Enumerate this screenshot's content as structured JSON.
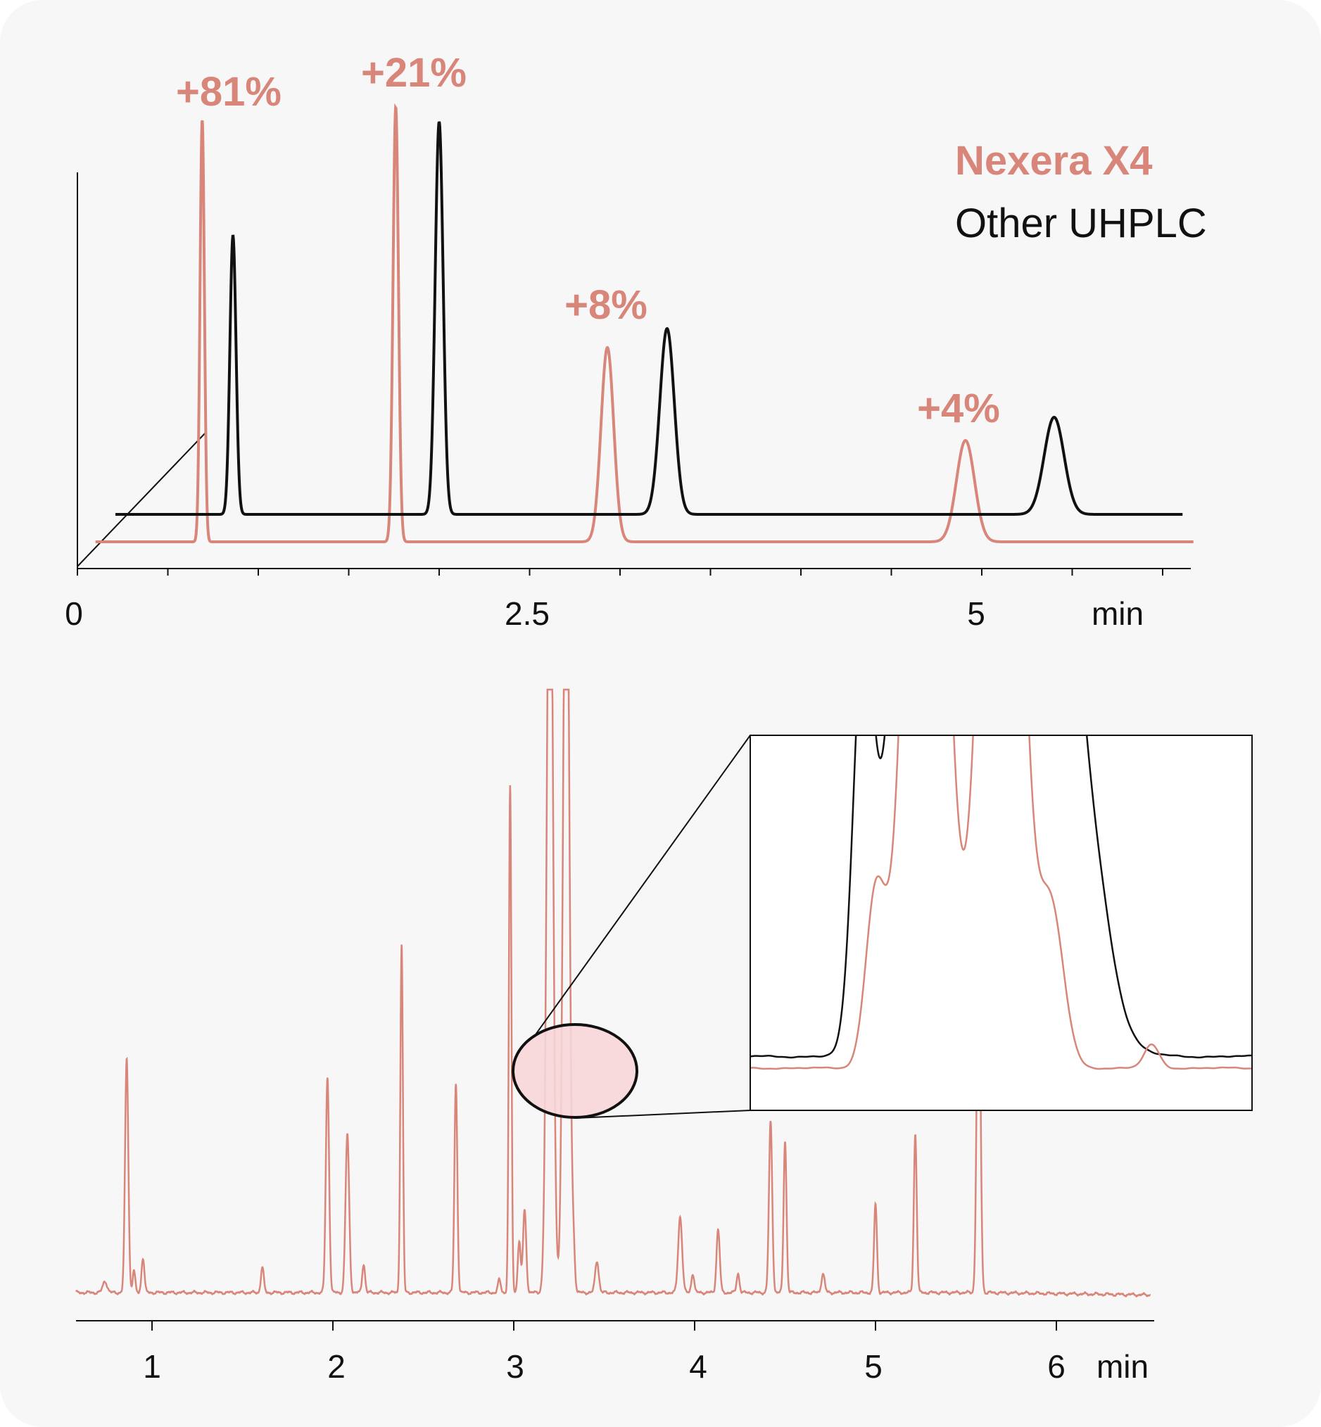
{
  "colors": {
    "nexera": "#d8857a",
    "other": "#111111",
    "card_bg": "#f7f7f7",
    "ellipse_fill": "#f7d6d8"
  },
  "chart_data": [
    {
      "type": "line",
      "legend": [
        "Nexera X4",
        "Other UHPLC"
      ],
      "legend_position": "top-right",
      "xlabel": "min",
      "x_ticks": [
        "0",
        "2.5",
        "5"
      ],
      "xlim": [
        0,
        6.2
      ],
      "grid": false,
      "series": [
        {
          "name": "Nexera X4",
          "baseline": 0,
          "peaks": [
            {
              "rt": 0.69,
              "height": 1.0,
              "width": 0.012,
              "annotation": "+81%"
            },
            {
              "rt": 1.76,
              "height": 1.03,
              "width": 0.015,
              "annotation": "+21%"
            },
            {
              "rt": 2.93,
              "height": 0.46,
              "width": 0.035,
              "annotation": "+8%"
            },
            {
              "rt": 4.91,
              "height": 0.24,
              "width": 0.05,
              "annotation": "+4%"
            }
          ]
        },
        {
          "name": "Other UHPLC",
          "baseline": 0.065,
          "peaks": [
            {
              "rt": 0.86,
              "height": 0.66,
              "width": 0.017
            },
            {
              "rt": 2.0,
              "height": 0.93,
              "width": 0.022
            },
            {
              "rt": 3.26,
              "height": 0.44,
              "width": 0.04
            },
            {
              "rt": 5.4,
              "height": 0.23,
              "width": 0.055
            }
          ]
        }
      ]
    },
    {
      "type": "line",
      "xlabel": "min",
      "x_ticks": [
        "1",
        "2",
        "3",
        "4",
        "5",
        "6"
      ],
      "xlim": [
        0.58,
        6.52
      ],
      "grid": false,
      "series": [
        {
          "name": "",
          "baseline": 0.01,
          "peaks": [
            {
              "rt": 0.74,
              "height": 0.018,
              "width": 0.012
            },
            {
              "rt": 0.86,
              "height": 0.37,
              "width": 0.009
            },
            {
              "rt": 0.9,
              "height": 0.035,
              "width": 0.007
            },
            {
              "rt": 0.95,
              "height": 0.055,
              "width": 0.008
            },
            {
              "rt": 1.61,
              "height": 0.04,
              "width": 0.008
            },
            {
              "rt": 1.97,
              "height": 0.34,
              "width": 0.009
            },
            {
              "rt": 2.08,
              "height": 0.25,
              "width": 0.01
            },
            {
              "rt": 2.17,
              "height": 0.045,
              "width": 0.008
            },
            {
              "rt": 2.38,
              "height": 0.55,
              "width": 0.007
            },
            {
              "rt": 2.68,
              "height": 0.33,
              "width": 0.008
            },
            {
              "rt": 2.92,
              "height": 0.02,
              "width": 0.008
            },
            {
              "rt": 2.98,
              "height": 0.8,
              "width": 0.007
            },
            {
              "rt": 3.03,
              "height": 0.08,
              "width": 0.008
            },
            {
              "rt": 3.06,
              "height": 0.13,
              "width": 0.009
            },
            {
              "rt": 3.2,
              "height": 1.4,
              "width": 0.016
            },
            {
              "rt": 3.29,
              "height": 1.4,
              "width": 0.016
            },
            {
              "rt": 3.33,
              "height": 0.06,
              "width": 0.008
            },
            {
              "rt": 3.46,
              "height": 0.05,
              "width": 0.01
            },
            {
              "rt": 3.92,
              "height": 0.12,
              "width": 0.011
            },
            {
              "rt": 3.99,
              "height": 0.03,
              "width": 0.008
            },
            {
              "rt": 4.13,
              "height": 0.1,
              "width": 0.009
            },
            {
              "rt": 4.24,
              "height": 0.03,
              "width": 0.008
            },
            {
              "rt": 4.42,
              "height": 0.27,
              "width": 0.009
            },
            {
              "rt": 4.5,
              "height": 0.24,
              "width": 0.008
            },
            {
              "rt": 4.71,
              "height": 0.03,
              "width": 0.009
            },
            {
              "rt": 5.0,
              "height": 0.14,
              "width": 0.008
            },
            {
              "rt": 5.22,
              "height": 0.25,
              "width": 0.008
            },
            {
              "rt": 5.57,
              "height": 0.6,
              "width": 0.01
            }
          ]
        }
      ],
      "zoom_highlight": {
        "x_range": [
          3.15,
          3.38
        ]
      }
    },
    {
      "type": "line",
      "role": "zoom-inset",
      "legend_position": "none",
      "grid": false,
      "xlim": [
        3.1,
        3.5
      ],
      "series": [
        {
          "name": "Nexera X4",
          "baseline": 0.02,
          "peaks": [
            {
              "rt": 3.2,
              "height": 0.22,
              "width": 0.008
            },
            {
              "rt": 3.24,
              "height": 1.4,
              "width": 0.014
            },
            {
              "rt": 3.3,
              "height": 1.4,
              "width": 0.014
            },
            {
              "rt": 3.34,
              "height": 0.2,
              "width": 0.01
            },
            {
              "rt": 3.42,
              "height": 0.03,
              "width": 0.006
            }
          ]
        },
        {
          "name": "Other UHPLC",
          "baseline": 0.035,
          "peaks": [
            {
              "rt": 3.19,
              "height": 0.5,
              "width": 0.008
            },
            {
              "rt": 3.24,
              "height": 1.4,
              "width": 0.02
            },
            {
              "rt": 3.32,
              "height": 1.4,
              "width": 0.03
            },
            {
              "rt": 3.38,
              "height": 0.05,
              "width": 0.012
            }
          ]
        }
      ]
    }
  ]
}
